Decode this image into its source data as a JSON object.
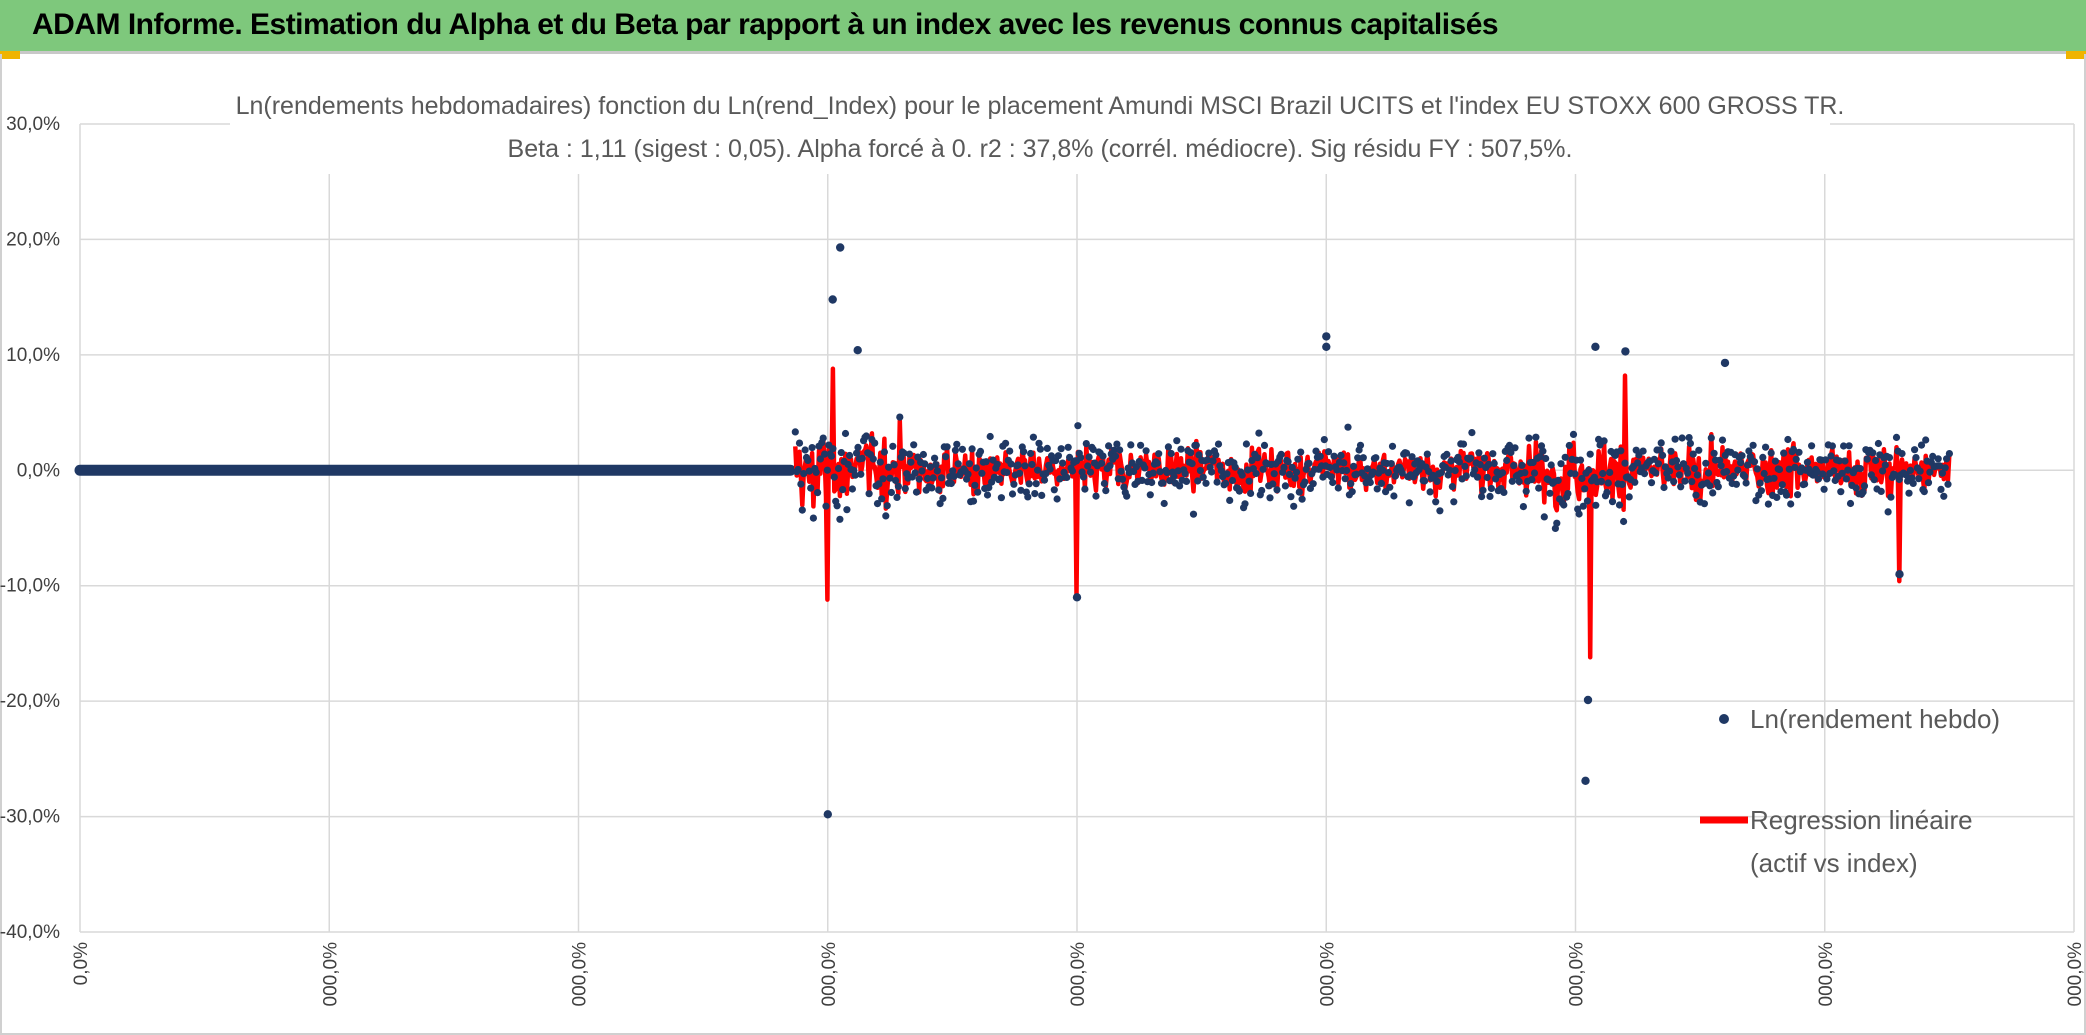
{
  "banner": {
    "title": "ADAM Informe. Estimation du Alpha et du Beta par rapport à un index avec les revenus connus capitalisés",
    "color": "#7ec87c"
  },
  "chart_data": {
    "type": "scatter",
    "title": "Ln(rendements hebdomadaires) fonction du Ln(rend_Index) pour le placement Amundi MSCI Brazil UCITS  et l'index EU STOXX 600 GROSS TR.",
    "subtitle": "Beta : 1,11 (sigest : 0,05). Alpha forcé à 0. r2 : 37,8% (corrél. médiocre). Sig résidu FY : 507,5%.",
    "ylim": [
      -40,
      30
    ],
    "y_ticks": [
      {
        "value": 30,
        "label": "30,0%"
      },
      {
        "value": 20,
        "label": "20,0%"
      },
      {
        "value": 10,
        "label": "10,0%"
      },
      {
        "value": 0,
        "label": "0,0%"
      },
      {
        "value": -10,
        "label": "-10,0%"
      },
      {
        "value": -20,
        "label": "-20,0%"
      },
      {
        "value": -30,
        "label": "-30,0%"
      },
      {
        "value": -40,
        "label": "-40,0%"
      }
    ],
    "x_ticks": [
      {
        "index": 0,
        "label": "0,0%"
      },
      {
        "index": 1,
        "label": "000,0%"
      },
      {
        "index": 2,
        "label": "000,0%"
      },
      {
        "index": 3,
        "label": "000,0%"
      },
      {
        "index": 4,
        "label": "000,0%"
      },
      {
        "index": 5,
        "label": "000,0%"
      },
      {
        "index": 6,
        "label": "000,0%"
      },
      {
        "index": 7,
        "label": "000,0%"
      },
      {
        "index": 8,
        "label": "000,0%"
      }
    ],
    "x_tick_count": 9,
    "grid": true,
    "legend_position": "right",
    "series": [
      {
        "name": "Ln(rendement hebdo)",
        "kind": "scatter",
        "color": "#1f3864",
        "zero_segment": {
          "x_start": 0.0,
          "x_end": 2.85,
          "y": 0
        },
        "active_range": [
          2.87,
          7.5
        ],
        "notable_points": [
          {
            "x": 3.05,
            "y": 19.3
          },
          {
            "x": 3.02,
            "y": 14.8
          },
          {
            "x": 3.12,
            "y": 10.4
          },
          {
            "x": 5.0,
            "y": 11.6
          },
          {
            "x": 5.0,
            "y": 10.7
          },
          {
            "x": 6.08,
            "y": 10.7
          },
          {
            "x": 6.2,
            "y": 10.3
          },
          {
            "x": 6.6,
            "y": 9.3
          },
          {
            "x": 3.0,
            "y": -29.8
          },
          {
            "x": 6.05,
            "y": -19.9
          },
          {
            "x": 6.04,
            "y": -26.9
          },
          {
            "x": 4.0,
            "y": -11.0
          },
          {
            "x": 7.3,
            "y": -9.0
          }
        ]
      },
      {
        "name": "Regression linéaire\n(actif vs index)",
        "kind": "line",
        "color": "#ff0000",
        "active_range": [
          2.87,
          7.5
        ],
        "notable_points": [
          {
            "x": 3.02,
            "y": 8.8
          },
          {
            "x": 3.0,
            "y": -11.2
          },
          {
            "x": 4.0,
            "y": -10.8
          },
          {
            "x": 6.06,
            "y": -16.2
          },
          {
            "x": 6.2,
            "y": 8.2
          },
          {
            "x": 7.3,
            "y": -9.6
          }
        ]
      }
    ],
    "legend": {
      "scatter_label": "Ln(rendement hebdo)",
      "line_label_1": "Regression linéaire",
      "line_label_2": "(actif vs index)"
    }
  }
}
